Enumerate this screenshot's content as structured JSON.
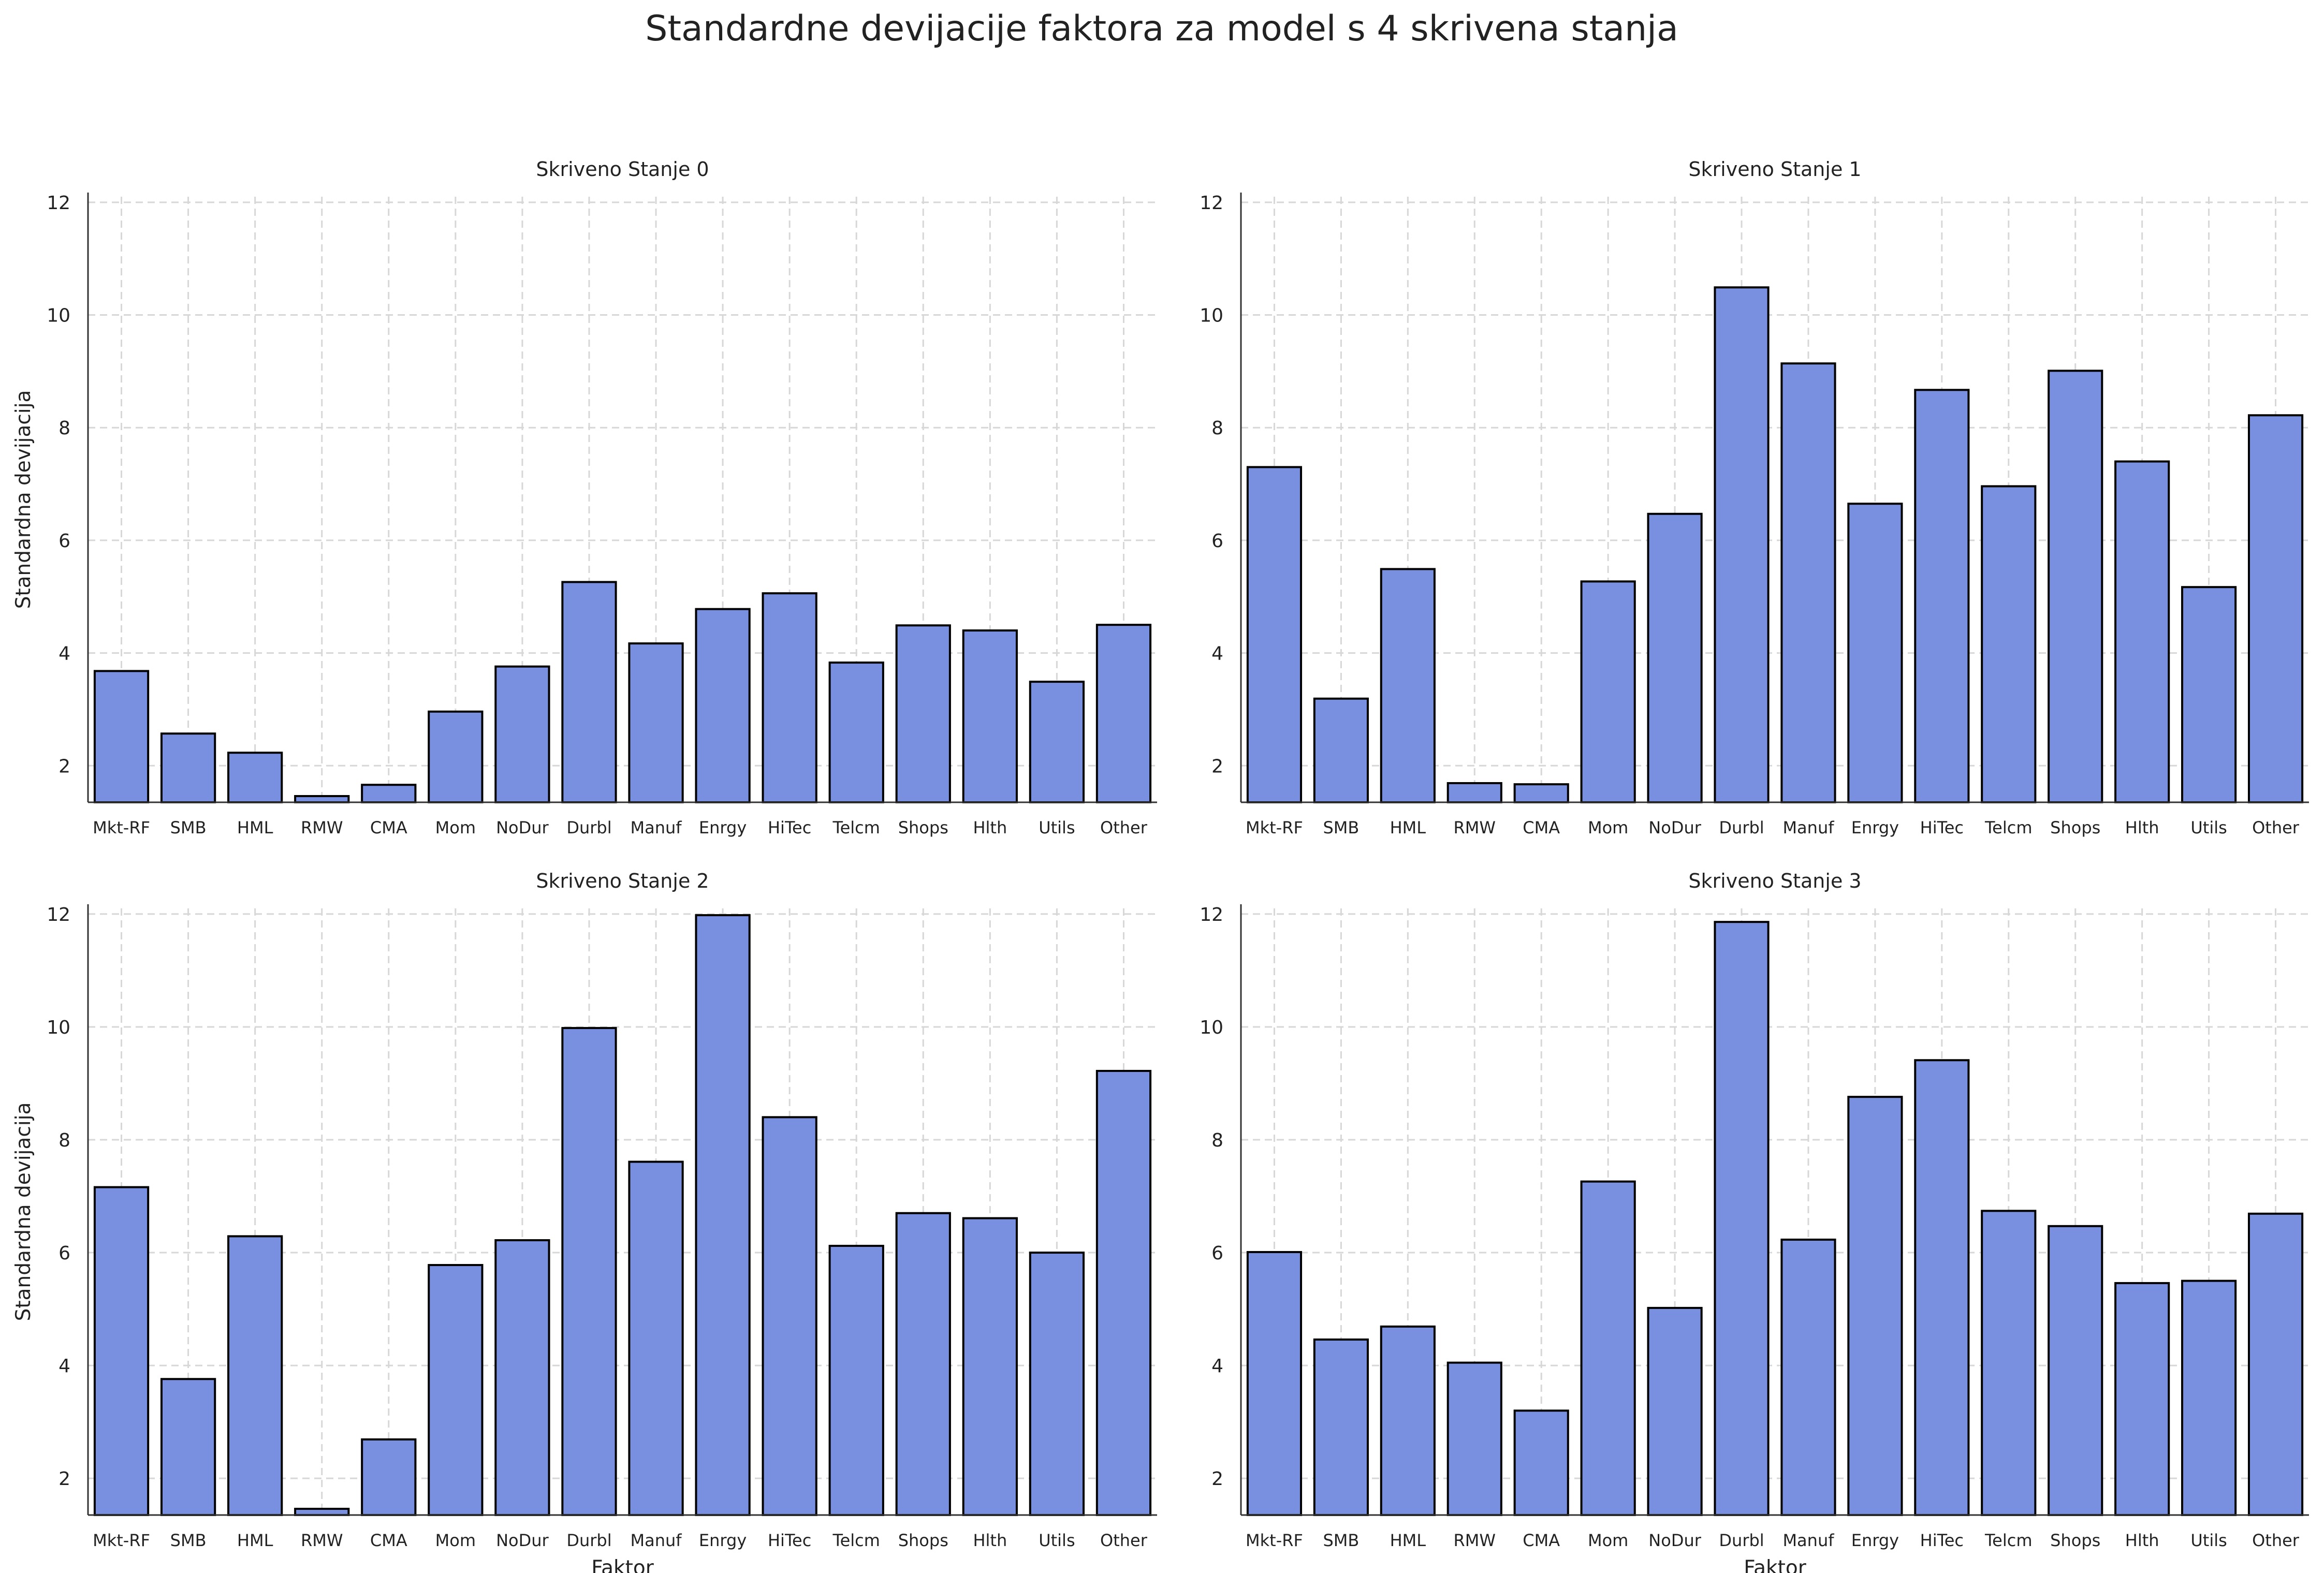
{
  "figure": {
    "title": "Standardne devijacije faktora za model s 4 skrivena stanja",
    "bar_color": "#7890df",
    "bar_edge_color": "#000000",
    "grid_color": "#d7d7d7",
    "text_color": "#222222"
  },
  "chart_data": [
    {
      "type": "bar",
      "title": "Skriveno Stanje 0",
      "xlabel": "",
      "ylabel": "Standardna devijacija",
      "ylim": [
        1.35,
        12.1
      ],
      "yticks": [
        2,
        4,
        6,
        8,
        10,
        12
      ],
      "grid": true,
      "categories": [
        "Mkt-RF",
        "SMB",
        "HML",
        "RMW",
        "CMA",
        "Mom",
        "NoDur",
        "Durbl",
        "Manuf",
        "Enrgy",
        "HiTec",
        "Telcm",
        "Shops",
        "Hlth",
        "Utils",
        "Other"
      ],
      "values": [
        3.68,
        2.57,
        2.23,
        1.46,
        1.66,
        2.96,
        3.76,
        5.26,
        4.17,
        4.78,
        5.06,
        3.83,
        4.49,
        4.4,
        3.49,
        4.5
      ]
    },
    {
      "type": "bar",
      "title": "Skriveno Stanje 1",
      "xlabel": "",
      "ylabel": "",
      "ylim": [
        1.35,
        12.1
      ],
      "yticks": [
        2,
        4,
        6,
        8,
        10,
        12
      ],
      "grid": true,
      "categories": [
        "Mkt-RF",
        "SMB",
        "HML",
        "RMW",
        "CMA",
        "Mom",
        "NoDur",
        "Durbl",
        "Manuf",
        "Enrgy",
        "HiTec",
        "Telcm",
        "Shops",
        "Hlth",
        "Utils",
        "Other"
      ],
      "values": [
        7.3,
        3.19,
        5.49,
        1.69,
        1.67,
        5.27,
        6.47,
        10.49,
        9.14,
        6.65,
        8.67,
        6.96,
        9.01,
        7.4,
        5.17,
        8.22
      ]
    },
    {
      "type": "bar",
      "title": "Skriveno Stanje 2",
      "xlabel": "Faktor",
      "ylabel": "Standardna devijacija",
      "ylim": [
        1.35,
        12.1
      ],
      "yticks": [
        2,
        4,
        6,
        8,
        10,
        12
      ],
      "grid": true,
      "categories": [
        "Mkt-RF",
        "SMB",
        "HML",
        "RMW",
        "CMA",
        "Mom",
        "NoDur",
        "Durbl",
        "Manuf",
        "Enrgy",
        "HiTec",
        "Telcm",
        "Shops",
        "Hlth",
        "Utils",
        "Other"
      ],
      "values": [
        7.16,
        3.76,
        6.29,
        1.46,
        2.69,
        5.78,
        6.22,
        9.98,
        7.61,
        11.98,
        8.4,
        6.12,
        6.7,
        6.61,
        6.0,
        9.22
      ]
    },
    {
      "type": "bar",
      "title": "Skriveno Stanje 3",
      "xlabel": "Faktor",
      "ylabel": "",
      "ylim": [
        1.35,
        12.1
      ],
      "yticks": [
        2,
        4,
        6,
        8,
        10,
        12
      ],
      "grid": true,
      "categories": [
        "Mkt-RF",
        "SMB",
        "HML",
        "RMW",
        "CMA",
        "Mom",
        "NoDur",
        "Durbl",
        "Manuf",
        "Enrgy",
        "HiTec",
        "Telcm",
        "Shops",
        "Hlth",
        "Utils",
        "Other"
      ],
      "values": [
        6.01,
        4.46,
        4.69,
        4.05,
        3.2,
        7.26,
        5.02,
        11.86,
        6.23,
        8.76,
        9.41,
        6.74,
        6.47,
        5.46,
        5.5,
        6.69
      ]
    }
  ]
}
